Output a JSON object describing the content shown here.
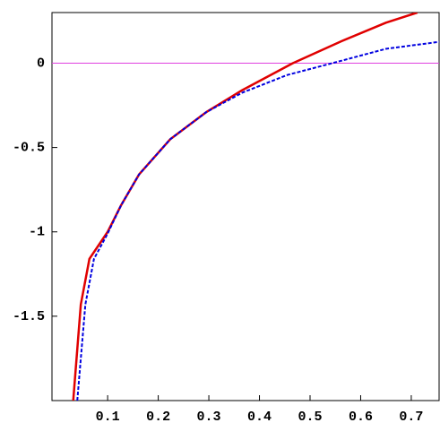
{
  "chart_data": {
    "type": "line",
    "xlim": [
      -0.01,
      0.755
    ],
    "ylim": [
      -2,
      0.3
    ],
    "xticks": [
      0.1,
      0.2,
      0.3,
      0.4,
      0.5,
      0.6,
      0.7
    ],
    "yticks": [
      -1.5,
      -1,
      -0.5,
      0
    ],
    "reference_line": {
      "y": 0,
      "color": "#e040e0"
    },
    "series": [
      {
        "color": "#e00000",
        "dash": false,
        "x": [
          0.032,
          0.047,
          0.064,
          0.1,
          0.127,
          0.162,
          0.224,
          0.295,
          0.366,
          0.466,
          0.562,
          0.65,
          0.712
        ],
        "values": [
          -2.0,
          -1.43,
          -1.16,
          -1.0,
          -0.84,
          -0.66,
          -0.45,
          -0.29,
          -0.16,
          0,
          0.13,
          0.24,
          0.3
        ]
      },
      {
        "color": "#0000e0",
        "dash": true,
        "x": [
          0.04,
          0.056,
          0.073,
          0.1,
          0.127,
          0.162,
          0.224,
          0.295,
          0.366,
          0.455,
          0.544,
          0.65,
          0.757
        ],
        "values": [
          -2.0,
          -1.43,
          -1.16,
          -1.01,
          -0.84,
          -0.66,
          -0.45,
          -0.29,
          -0.175,
          -0.07,
          0,
          0.085,
          0.127
        ]
      }
    ]
  }
}
